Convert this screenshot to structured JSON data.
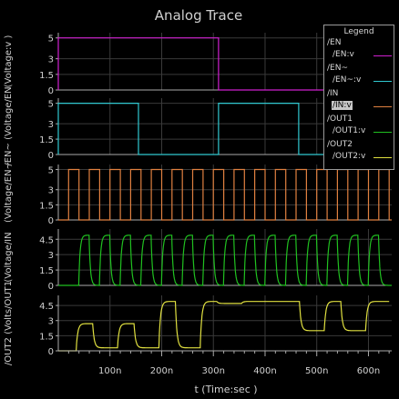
{
  "chart_data": {
    "type": "line",
    "title": "Analog Trace",
    "xlabel": "t (Time:sec )",
    "xlim_ns": [
      0,
      645
    ],
    "x_ticks": [
      {
        "v": 100,
        "label": "100n"
      },
      {
        "v": 200,
        "label": "200n"
      },
      {
        "v": 300,
        "label": "300n"
      },
      {
        "v": 400,
        "label": "400n"
      },
      {
        "v": 500,
        "label": "500n"
      },
      {
        "v": 600,
        "label": "600n"
      }
    ],
    "grid": true,
    "legend_position": "top-right",
    "legend": {
      "title": "Legend",
      "entries": [
        {
          "name": "/EN",
          "signal": "/EN:v",
          "color": "#d020d0",
          "selected": false
        },
        {
          "name": "/EN~",
          "signal": "/EN~:v",
          "color": "#30c8d0",
          "selected": false
        },
        {
          "name": "/IN",
          "signal": "/IN:v",
          "color": "#e08040",
          "selected": true
        },
        {
          "name": "/OUT1",
          "signal": "/OUT1:v",
          "color": "#20c020",
          "selected": false
        },
        {
          "name": "/OUT2",
          "signal": "/OUT2:v",
          "color": "#e0e040",
          "selected": false
        }
      ]
    },
    "panels": [
      {
        "ylabel": "(Voltage:v )",
        "yticks": [
          "5",
          "3",
          "1.5",
          "0"
        ],
        "ylim": [
          0,
          5.5
        ],
        "color": "#d020d0",
        "points": [
          [
            0,
            0
          ],
          [
            0,
            5
          ],
          [
            310,
            5
          ],
          [
            310,
            0
          ],
          [
            645,
            0
          ]
        ]
      },
      {
        "ylabel": "/EN~ (Voltage/EN",
        "yticks": [
          "5",
          "3",
          "1.5",
          "0"
        ],
        "ylim": [
          0,
          5.5
        ],
        "color": "#30c8d0",
        "points": [
          [
            0,
            0
          ],
          [
            0,
            5
          ],
          [
            155,
            5
          ],
          [
            155,
            0
          ],
          [
            310,
            0
          ],
          [
            310,
            5
          ],
          [
            465,
            5
          ],
          [
            465,
            0
          ],
          [
            645,
            0
          ]
        ]
      },
      {
        "ylabel": "(Voltage/EN~",
        "yticks": [
          "5",
          "3",
          "1.5",
          "0"
        ],
        "ylim": [
          0,
          5.5
        ],
        "color": "#e08040",
        "pulse": {
          "first_rise": 20,
          "high": 20,
          "period": 40,
          "count": 16
        }
      },
      {
        "ylabel": "(Voltage/IN",
        "yticks": [
          "4.5",
          "3",
          "1.5",
          "0"
        ],
        "ylim": [
          0,
          5.5
        ],
        "color": "#20c020",
        "pulse": {
          "first_rise": 40,
          "high": 20,
          "period": 40,
          "count": 15,
          "tau": 2.5
        }
      },
      {
        "ylabel": "/OUT2 (Volts/OUT1",
        "yticks": [
          "4.5",
          "3",
          "1.5",
          "0"
        ],
        "ylim": [
          0,
          5.5
        ],
        "color": "#e0e040",
        "segments": [
          [
            0,
            0.0
          ],
          [
            35,
            2.7
          ],
          [
            67,
            0.3
          ],
          [
            115,
            2.7
          ],
          [
            147,
            0.3
          ],
          [
            195,
            4.9
          ],
          [
            227,
            0.3
          ],
          [
            275,
            4.9
          ],
          [
            307,
            4.7
          ],
          [
            355,
            4.9
          ],
          [
            467,
            2.0
          ],
          [
            515,
            4.9
          ],
          [
            547,
            2.0
          ],
          [
            595,
            4.9
          ],
          [
            640,
            4.9
          ]
        ]
      }
    ]
  }
}
